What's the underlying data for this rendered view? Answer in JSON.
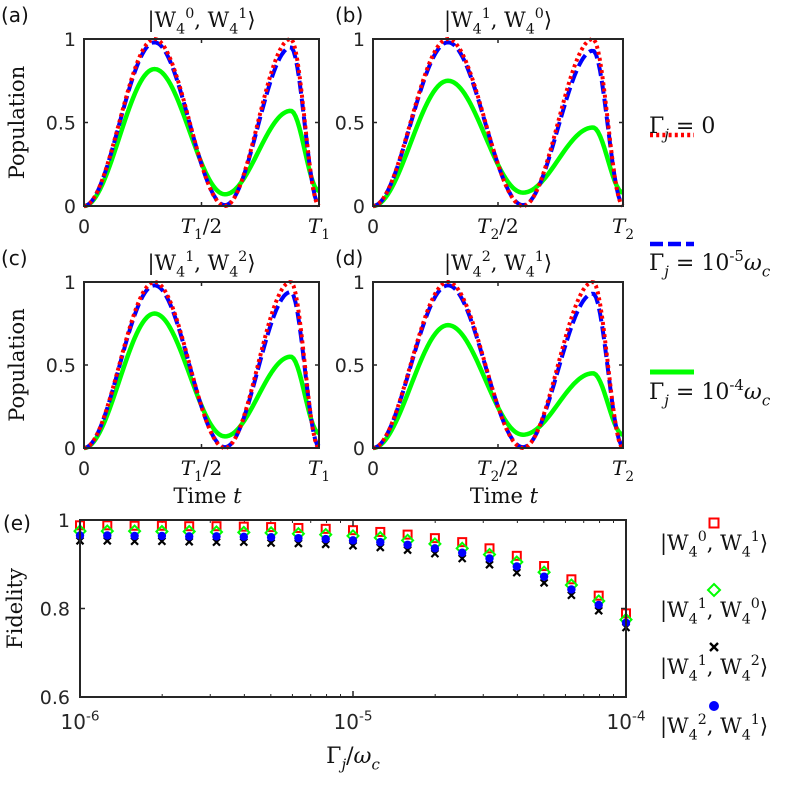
{
  "chart_data": [
    {
      "type": "line",
      "panel_label": "(a)",
      "title": {
        "base": "|W",
        "sub1": "4",
        "sup1": "0",
        "sep": ", W",
        "sub2": "4",
        "sup2": "1",
        "close": "⟩"
      },
      "xlabel": "",
      "ylabel": "Population",
      "xlim": [
        0,
        1
      ],
      "ylim": [
        0,
        1
      ],
      "xticks": [
        {
          "v": 0,
          "text": "0"
        },
        {
          "v": 0.5,
          "base": "T",
          "sub": "1",
          "rest": "/2"
        },
        {
          "v": 1,
          "base": "T",
          "sub": "1"
        }
      ],
      "yticks": [
        {
          "v": 0,
          "text": "0"
        },
        {
          "v": 0.5,
          "text": "0.5"
        },
        {
          "v": 1,
          "text": "1"
        }
      ],
      "series": [
        {
          "name": "Γj = 0",
          "color": "#ff0000",
          "style": "dotted",
          "peak1": 1.0,
          "trough": 0.0,
          "peak2": 1.0,
          "end": 0.0
        },
        {
          "name": "Γj = 1e-5 ωc",
          "color": "#0000ff",
          "style": "dashed",
          "peak1": 0.98,
          "trough": 0.005,
          "peak2": 0.95,
          "end": 0.01
        },
        {
          "name": "Γj = 1e-4 ωc",
          "color": "#00ff00",
          "style": "solid",
          "peak1": 0.82,
          "trough": 0.07,
          "peak2": 0.57,
          "end": 0.09
        }
      ]
    },
    {
      "type": "line",
      "panel_label": "(b)",
      "title": {
        "base": "|W",
        "sub1": "4",
        "sup1": "1",
        "sep": ", W",
        "sub2": "4",
        "sup2": "0",
        "close": "⟩"
      },
      "xlabel": "",
      "ylabel": "",
      "xlim": [
        0,
        1
      ],
      "ylim": [
        0,
        1
      ],
      "xticks": [
        {
          "v": 0,
          "text": "0"
        },
        {
          "v": 0.5,
          "base": "T",
          "sub": "2",
          "rest": "/2"
        },
        {
          "v": 1,
          "base": "T",
          "sub": "2"
        }
      ],
      "yticks": [
        {
          "v": 0,
          "text": "0"
        },
        {
          "v": 0.5,
          "text": "0.5"
        },
        {
          "v": 1,
          "text": "1"
        }
      ],
      "series": [
        {
          "name": "Γj = 0",
          "color": "#ff0000",
          "style": "dotted",
          "peak1": 1.0,
          "trough": 0.0,
          "peak2": 1.0,
          "end": 0.0
        },
        {
          "name": "Γj = 1e-5 ωc",
          "color": "#0000ff",
          "style": "dashed",
          "peak1": 0.98,
          "trough": 0.005,
          "peak2": 0.93,
          "end": 0.01
        },
        {
          "name": "Γj = 1e-4 ωc",
          "color": "#00ff00",
          "style": "solid",
          "peak1": 0.75,
          "trough": 0.08,
          "peak2": 0.47,
          "end": 0.08
        }
      ]
    },
    {
      "type": "line",
      "panel_label": "(c)",
      "title": {
        "base": "|W",
        "sub1": "4",
        "sup1": "1",
        "sep": ", W",
        "sub2": "4",
        "sup2": "2",
        "close": "⟩"
      },
      "xlabel": "Time",
      "xlabel_var": "t",
      "ylabel": "Population",
      "xlim": [
        0,
        1
      ],
      "ylim": [
        0,
        1
      ],
      "xticks": [
        {
          "v": 0,
          "text": "0"
        },
        {
          "v": 0.5,
          "base": "T",
          "sub": "1",
          "rest": "/2"
        },
        {
          "v": 1,
          "base": "T",
          "sub": "1"
        }
      ],
      "yticks": [
        {
          "v": 0,
          "text": "0"
        },
        {
          "v": 0.5,
          "text": "0.5"
        },
        {
          "v": 1,
          "text": "1"
        }
      ],
      "series": [
        {
          "name": "Γj = 0",
          "color": "#ff0000",
          "style": "dotted",
          "peak1": 1.0,
          "trough": 0.0,
          "peak2": 1.0,
          "end": 0.0
        },
        {
          "name": "Γj = 1e-5 ωc",
          "color": "#0000ff",
          "style": "dashed",
          "peak1": 0.98,
          "trough": 0.005,
          "peak2": 0.94,
          "end": 0.01
        },
        {
          "name": "Γj = 1e-4 ωc",
          "color": "#00ff00",
          "style": "solid",
          "peak1": 0.81,
          "trough": 0.07,
          "peak2": 0.55,
          "end": 0.09
        }
      ]
    },
    {
      "type": "line",
      "panel_label": "(d)",
      "title": {
        "base": "|W",
        "sub1": "4",
        "sup1": "2",
        "sep": ", W",
        "sub2": "4",
        "sup2": "1",
        "close": "⟩"
      },
      "xlabel": "Time",
      "xlabel_var": "t",
      "ylabel": "",
      "xlim": [
        0,
        1
      ],
      "ylim": [
        0,
        1
      ],
      "xticks": [
        {
          "v": 0,
          "text": "0"
        },
        {
          "v": 0.5,
          "base": "T",
          "sub": "2",
          "rest": "/2"
        },
        {
          "v": 1,
          "base": "T",
          "sub": "2"
        }
      ],
      "yticks": [
        {
          "v": 0,
          "text": "0"
        },
        {
          "v": 0.5,
          "text": "0.5"
        },
        {
          "v": 1,
          "text": "1"
        }
      ],
      "series": [
        {
          "name": "Γj = 0",
          "color": "#ff0000",
          "style": "dotted",
          "peak1": 1.0,
          "trough": 0.0,
          "peak2": 1.0,
          "end": 0.0
        },
        {
          "name": "Γj = 1e-5 ωc",
          "color": "#0000ff",
          "style": "dashed",
          "peak1": 0.98,
          "trough": 0.005,
          "peak2": 0.93,
          "end": 0.01
        },
        {
          "name": "Γj = 1e-4 ωc",
          "color": "#00ff00",
          "style": "solid",
          "peak1": 0.74,
          "trough": 0.08,
          "peak2": 0.45,
          "end": 0.08
        }
      ]
    },
    {
      "type": "scatter",
      "panel_label": "(e)",
      "xscale": "log",
      "xlim": [
        1e-06,
        0.0001
      ],
      "ylim": [
        0.6,
        1.0
      ],
      "ylabel": "Fidelity",
      "xlabel": {
        "base": "Γ",
        "sub": "j",
        "rest": "/ω",
        "sub2": "c"
      },
      "xticks": [
        {
          "v": 1e-06,
          "base": "10",
          "exp": "-6"
        },
        {
          "v": 1e-05,
          "base": "10",
          "exp": "-5"
        },
        {
          "v": 0.0001,
          "base": "10",
          "exp": "-4"
        }
      ],
      "yticks": [
        {
          "v": 0.6,
          "text": "0.6"
        },
        {
          "v": 0.8,
          "text": "0.8"
        },
        {
          "v": 1.0,
          "text": "1"
        }
      ],
      "x": [
        1e-06,
        1.258925e-06,
        1.584893e-06,
        1.995262e-06,
        2.511886e-06,
        3.162278e-06,
        3.981072e-06,
        5.011872e-06,
        6.309573e-06,
        7.943282e-06,
        1e-05,
        1.258925e-05,
        1.584893e-05,
        1.995262e-05,
        2.511886e-05,
        3.162278e-05,
        3.981072e-05,
        5.011872e-05,
        6.309573e-05,
        7.943282e-05,
        0.0001
      ],
      "series": [
        {
          "name": "|W4^0, W4^1⟩",
          "marker": "square",
          "color": "#ff0000",
          "values": [
            0.988,
            0.988,
            0.987,
            0.987,
            0.986,
            0.986,
            0.985,
            0.984,
            0.982,
            0.98,
            0.977,
            0.973,
            0.967,
            0.959,
            0.95,
            0.936,
            0.919,
            0.896,
            0.866,
            0.829,
            0.789
          ]
        },
        {
          "name": "|W4^1, W4^0⟩",
          "marker": "diamond",
          "color": "#00ff00",
          "values": [
            0.975,
            0.975,
            0.975,
            0.974,
            0.974,
            0.973,
            0.972,
            0.971,
            0.969,
            0.967,
            0.964,
            0.96,
            0.954,
            0.946,
            0.936,
            0.922,
            0.905,
            0.882,
            0.853,
            0.817,
            0.775
          ]
        },
        {
          "name": "|W4^1, W4^2⟩",
          "marker": "cross",
          "color": "#000000",
          "values": [
            0.953,
            0.953,
            0.952,
            0.952,
            0.951,
            0.95,
            0.95,
            0.948,
            0.947,
            0.945,
            0.942,
            0.938,
            0.932,
            0.924,
            0.913,
            0.899,
            0.881,
            0.858,
            0.83,
            0.795,
            0.757
          ]
        },
        {
          "name": "|W4^2, W4^1⟩",
          "marker": "circle",
          "color": "#0000ff",
          "values": [
            0.965,
            0.965,
            0.964,
            0.964,
            0.963,
            0.963,
            0.962,
            0.961,
            0.959,
            0.957,
            0.954,
            0.95,
            0.944,
            0.936,
            0.926,
            0.913,
            0.895,
            0.872,
            0.843,
            0.808,
            0.768
          ]
        }
      ]
    }
  ],
  "legend_top": [
    {
      "style": "dotted",
      "color": "#ff0000",
      "greek": "Γ",
      "sub": "j",
      "rest": " = 0",
      "exp": "",
      "tail": "",
      "tailsub": ""
    },
    {
      "style": "dashed",
      "color": "#0000ff",
      "greek": "Γ",
      "sub": "j",
      "rest": " = 10",
      "exp": "-5",
      "tail": "ω",
      "tailsub": "c"
    },
    {
      "style": "solid",
      "color": "#00ff00",
      "greek": "Γ",
      "sub": "j",
      "rest": " = 10",
      "exp": "-4",
      "tail": "ω",
      "tailsub": "c"
    }
  ],
  "legend_bottom": [
    {
      "marker": "square",
      "color": "#ff0000",
      "sup1": "0",
      "sup2": "1"
    },
    {
      "marker": "diamond",
      "color": "#00ff00",
      "sup1": "1",
      "sup2": "0"
    },
    {
      "marker": "cross",
      "color": "#000000",
      "sup1": "1",
      "sup2": "2"
    },
    {
      "marker": "circle",
      "color": "#0000ff",
      "sup1": "2",
      "sup2": "1"
    }
  ],
  "legend_ket": {
    "open": "|W",
    "sub": "4",
    "sep": ", W",
    "close": "⟩"
  }
}
